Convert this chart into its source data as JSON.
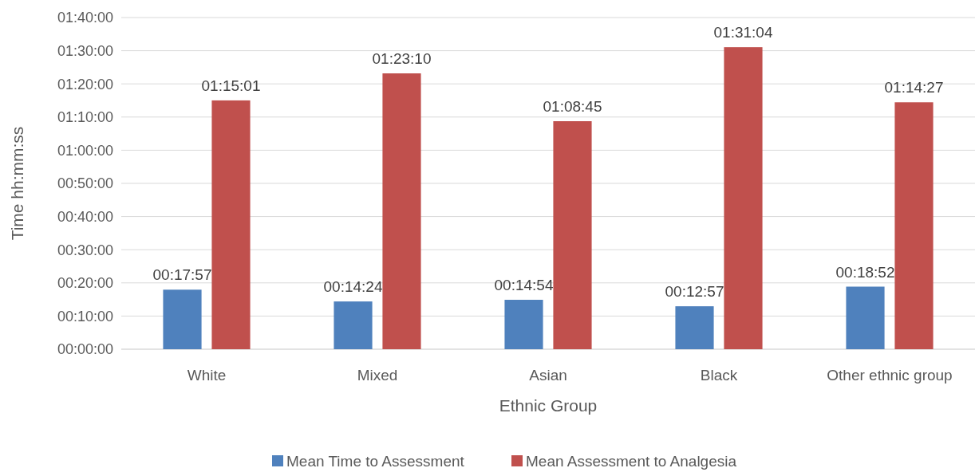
{
  "chart_data": {
    "type": "bar",
    "xlabel": "Ethnic Group",
    "ylabel": "Time hh:mm:ss",
    "categories": [
      "White",
      "Mixed",
      "Asian",
      "Black",
      "Other ethnic group"
    ],
    "series": [
      {
        "name": "Mean Time to Assessment",
        "color": "#4f81bd",
        "values": [
          17.95,
          14.4,
          14.9,
          12.95,
          18.867
        ],
        "value_labels": [
          "00:17:57",
          "00:14:24",
          "00:14:54",
          "00:12:57",
          "00:18:52"
        ]
      },
      {
        "name": "Mean Assessment to Analgesia",
        "color": "#c0504d",
        "values": [
          75.017,
          83.167,
          68.75,
          91.067,
          74.45
        ],
        "value_labels": [
          "01:15:01",
          "01:23:10",
          "01:08:45",
          "01:31:04",
          "01:14:27"
        ]
      }
    ],
    "ylim": [
      0,
      100
    ],
    "yticks": [
      {
        "value": 0,
        "label": "00:00:00"
      },
      {
        "value": 10,
        "label": "00:10:00"
      },
      {
        "value": 20,
        "label": "00:20:00"
      },
      {
        "value": 30,
        "label": "00:30:00"
      },
      {
        "value": 40,
        "label": "00:40:00"
      },
      {
        "value": 50,
        "label": "00:50:00"
      },
      {
        "value": 60,
        "label": "01:00:00"
      },
      {
        "value": 70,
        "label": "01:10:00"
      },
      {
        "value": 80,
        "label": "01:20:00"
      },
      {
        "value": 90,
        "label": "01:30:00"
      },
      {
        "value": 100,
        "label": "01:40:00"
      }
    ],
    "grid": "y",
    "legend": "bottom"
  }
}
